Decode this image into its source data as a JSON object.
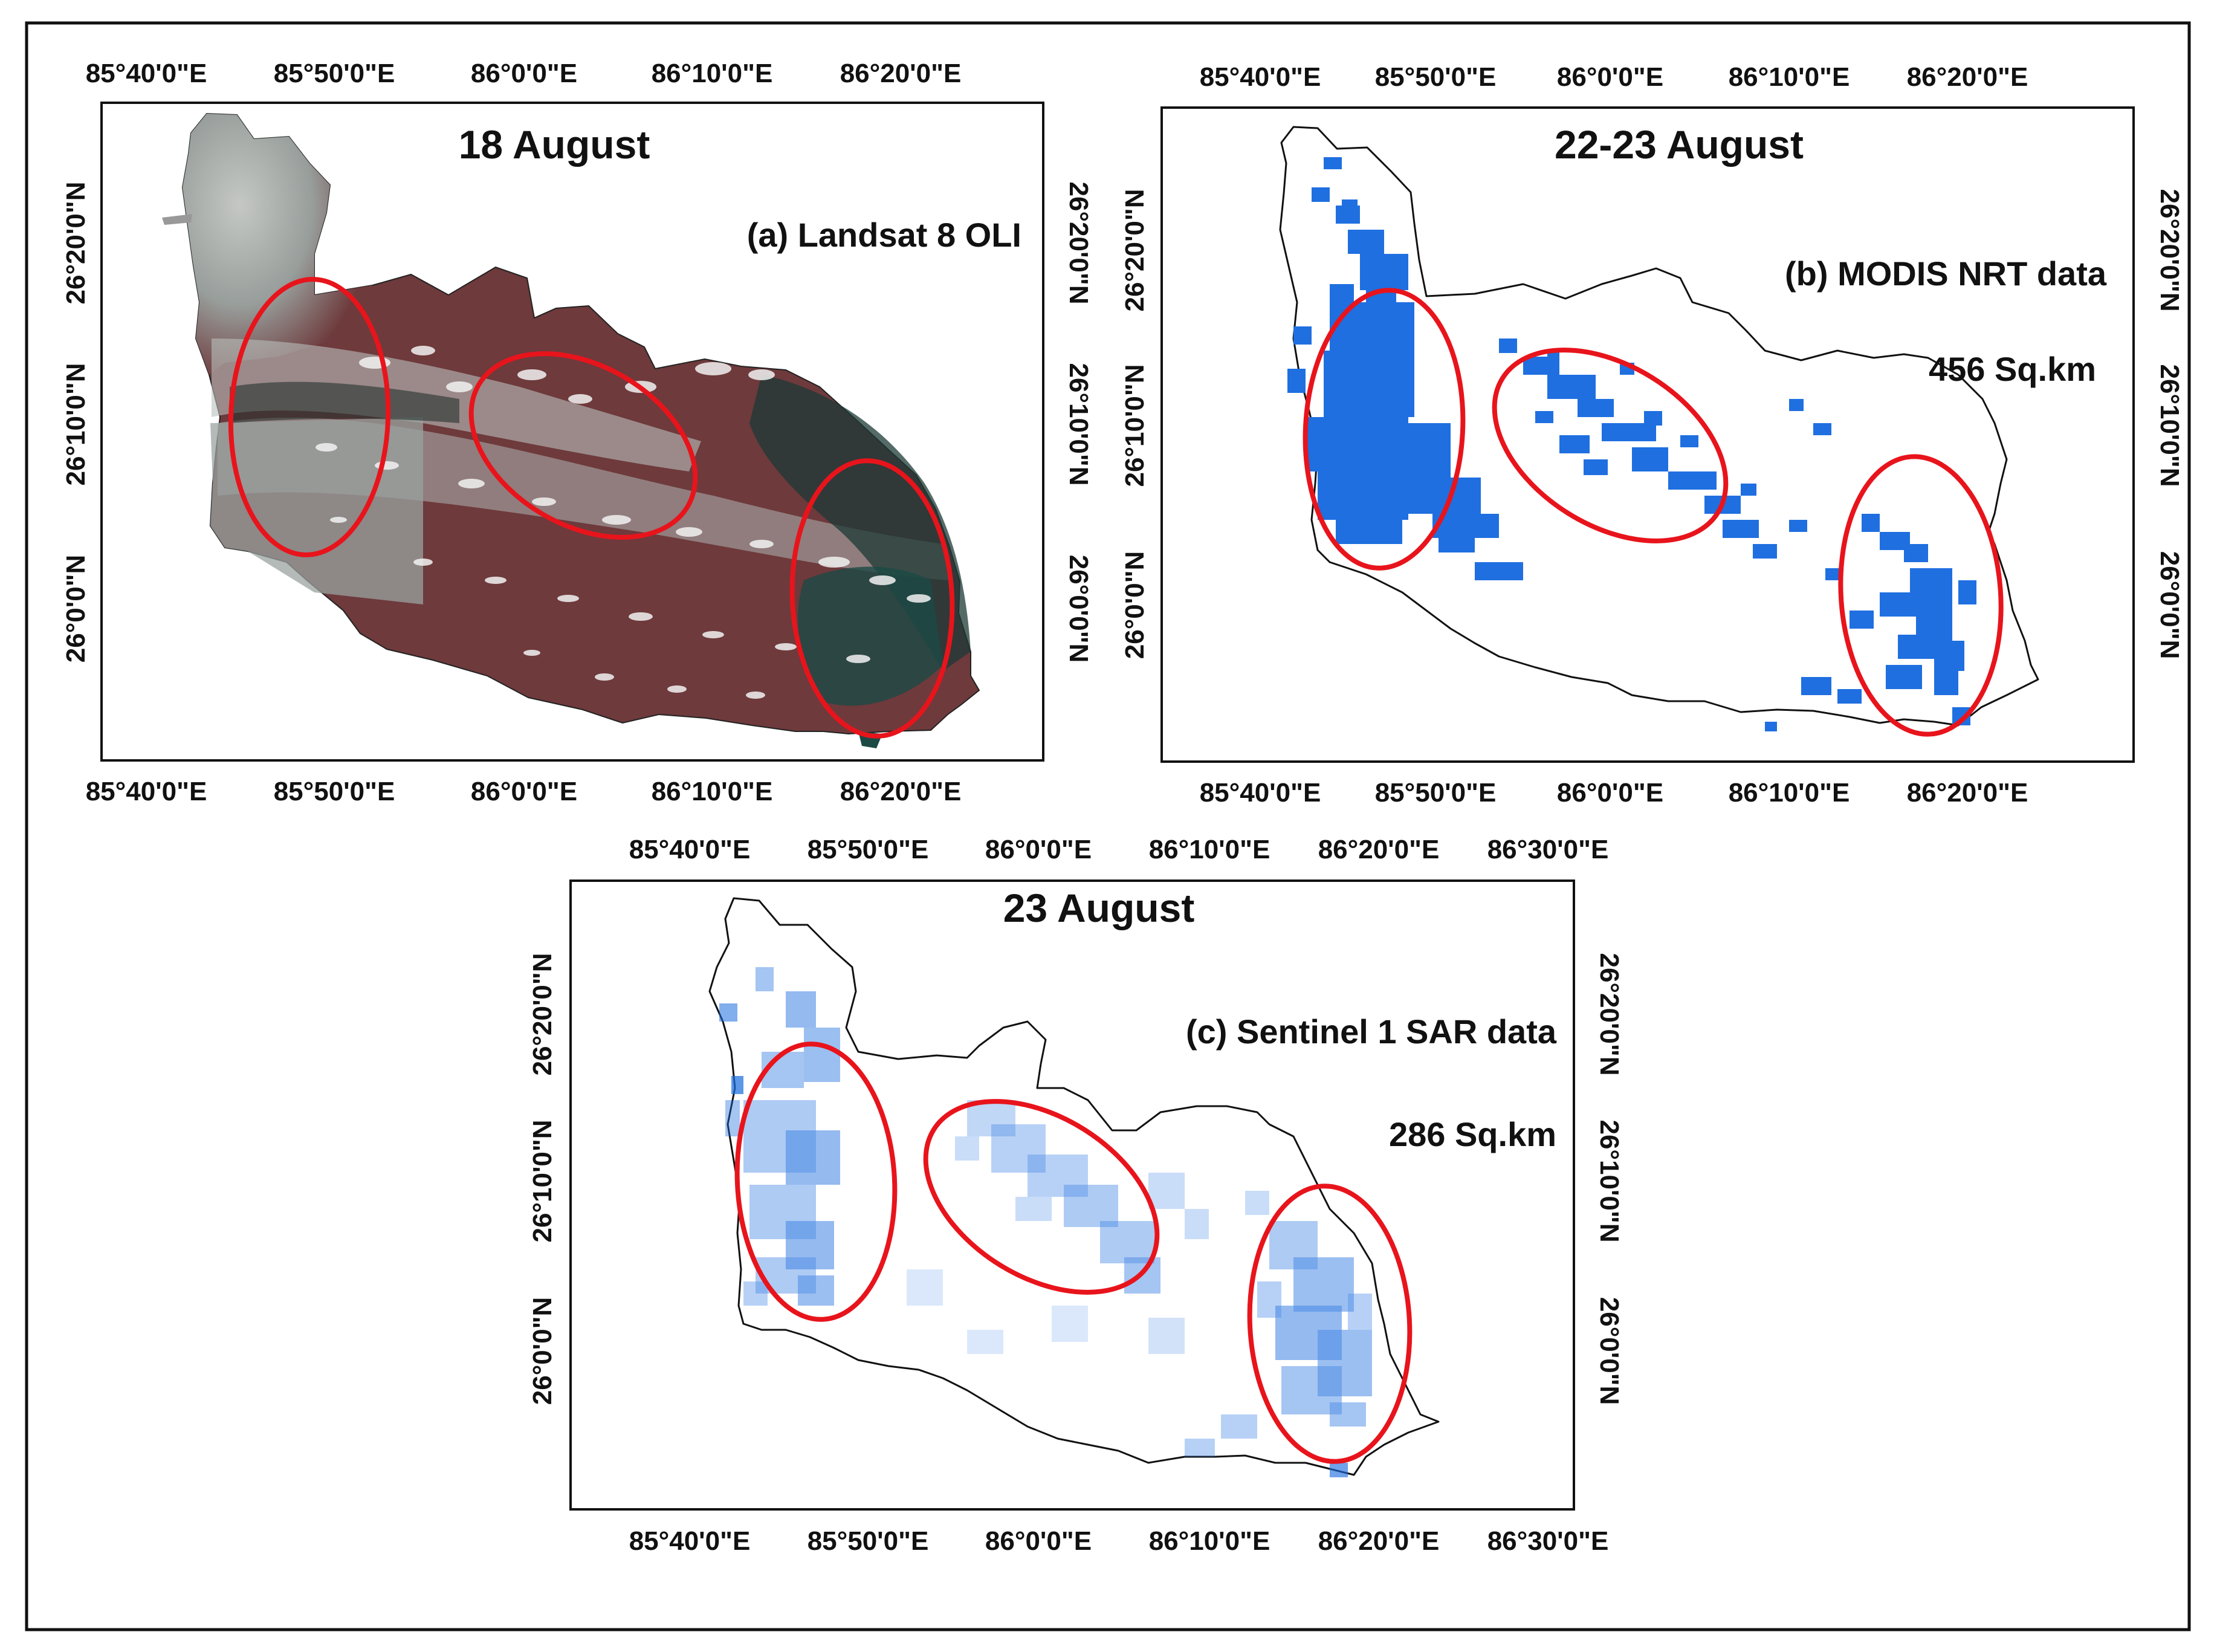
{
  "colors": {
    "flood": "#1f6fe0",
    "highlight": "#e8141c",
    "optical_land": "#6e3a3c",
    "optical_cloud": "#b9c0bd",
    "optical_water": "#1c4a45"
  },
  "panels": {
    "a": {
      "date": "18 August",
      "label": "(a) Landsat 8 OLI",
      "lon_ticks": [
        "85°40'0\"E",
        "85°50'0\"E",
        "86°0'0\"E",
        "86°10'0\"E",
        "86°20'0\"E"
      ],
      "lat_ticks": [
        "26°20'0\"N",
        "26°10'0\"N",
        "26°0'0\"N"
      ]
    },
    "b": {
      "date": "22-23 August",
      "label": "(b) MODIS NRT data",
      "area": "456 Sq.km",
      "lon_ticks": [
        "85°40'0\"E",
        "85°50'0\"E",
        "86°0'0\"E",
        "86°10'0\"E",
        "86°20'0\"E"
      ],
      "lat_ticks": [
        "26°20'0\"N",
        "26°10'0\"N",
        "26°0'0\"N"
      ]
    },
    "c": {
      "date": "23 August",
      "label": "(c) Sentinel 1 SAR data",
      "area": "286 Sq.km",
      "lon_ticks": [
        "85°40'0\"E",
        "85°50'0\"E",
        "86°0'0\"E",
        "86°10'0\"E",
        "86°20'0\"E",
        "86°30'0\"E"
      ],
      "lat_ticks": [
        "26°20'0\"N",
        "26°10'0\"N",
        "26°0'0\"N"
      ]
    }
  }
}
